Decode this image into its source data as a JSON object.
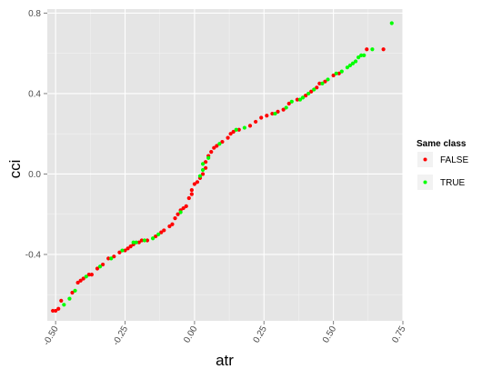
{
  "chart_data": {
    "type": "scatter",
    "title": "",
    "xlabel": "atr",
    "ylabel": "cci",
    "xlim": [
      -0.53,
      0.75
    ],
    "ylim": [
      -0.73,
      0.82
    ],
    "x_ticks": [
      -0.5,
      -0.25,
      0.0,
      0.25,
      0.5,
      0.75
    ],
    "x_tick_labels": [
      "-0.50",
      "-0.25",
      "0.00",
      "0.25",
      "0.50",
      "0.75"
    ],
    "y_ticks": [
      -0.4,
      0.0,
      0.4,
      0.8
    ],
    "y_tick_labels": [
      "-0.4",
      "0.0",
      "0.4",
      "0.8"
    ],
    "grid": true,
    "legend": {
      "title": "Same class",
      "placement": "right",
      "entries": [
        {
          "label": "FALSE",
          "color": "#ff0000"
        },
        {
          "label": "TRUE",
          "color": "#00ff00"
        }
      ]
    },
    "series": [
      {
        "name": "FALSE",
        "color": "#ff0000",
        "points": [
          [
            -0.51,
            -0.68
          ],
          [
            -0.5,
            -0.68
          ],
          [
            -0.49,
            -0.67
          ],
          [
            -0.48,
            -0.63
          ],
          [
            -0.44,
            -0.59
          ],
          [
            -0.42,
            -0.54
          ],
          [
            -0.41,
            -0.53
          ],
          [
            -0.4,
            -0.52
          ],
          [
            -0.38,
            -0.5
          ],
          [
            -0.37,
            -0.5
          ],
          [
            -0.35,
            -0.47
          ],
          [
            -0.33,
            -0.45
          ],
          [
            -0.31,
            -0.42
          ],
          [
            -0.29,
            -0.41
          ],
          [
            -0.27,
            -0.39
          ],
          [
            -0.25,
            -0.38
          ],
          [
            -0.24,
            -0.37
          ],
          [
            -0.23,
            -0.36
          ],
          [
            -0.22,
            -0.35
          ],
          [
            -0.2,
            -0.34
          ],
          [
            -0.19,
            -0.33
          ],
          [
            -0.17,
            -0.33
          ],
          [
            -0.14,
            -0.31
          ],
          [
            -0.12,
            -0.29
          ],
          [
            -0.11,
            -0.28
          ],
          [
            -0.09,
            -0.26
          ],
          [
            -0.08,
            -0.25
          ],
          [
            -0.07,
            -0.22
          ],
          [
            -0.06,
            -0.2
          ],
          [
            -0.05,
            -0.18
          ],
          [
            -0.04,
            -0.17
          ],
          [
            -0.03,
            -0.16
          ],
          [
            -0.02,
            -0.12
          ],
          [
            -0.01,
            -0.1
          ],
          [
            -0.01,
            -0.08
          ],
          [
            0.0,
            -0.05
          ],
          [
            0.01,
            -0.04
          ],
          [
            0.02,
            -0.02
          ],
          [
            0.03,
            0.0
          ],
          [
            0.04,
            0.03
          ],
          [
            0.04,
            0.06
          ],
          [
            0.05,
            0.09
          ],
          [
            0.06,
            0.11
          ],
          [
            0.07,
            0.13
          ],
          [
            0.08,
            0.14
          ],
          [
            0.1,
            0.16
          ],
          [
            0.12,
            0.18
          ],
          [
            0.13,
            0.2
          ],
          [
            0.14,
            0.21
          ],
          [
            0.16,
            0.22
          ],
          [
            0.2,
            0.24
          ],
          [
            0.22,
            0.26
          ],
          [
            0.24,
            0.28
          ],
          [
            0.26,
            0.29
          ],
          [
            0.28,
            0.3
          ],
          [
            0.3,
            0.31
          ],
          [
            0.32,
            0.32
          ],
          [
            0.34,
            0.35
          ],
          [
            0.37,
            0.37
          ],
          [
            0.4,
            0.39
          ],
          [
            0.42,
            0.41
          ],
          [
            0.44,
            0.43
          ],
          [
            0.45,
            0.45
          ],
          [
            0.47,
            0.46
          ],
          [
            0.5,
            0.49
          ],
          [
            0.52,
            0.5
          ],
          [
            0.62,
            0.62
          ],
          [
            0.68,
            0.62
          ]
        ]
      },
      {
        "name": "TRUE",
        "color": "#00ff00",
        "points": [
          [
            -0.47,
            -0.65
          ],
          [
            -0.45,
            -0.62
          ],
          [
            -0.43,
            -0.58
          ],
          [
            -0.39,
            -0.51
          ],
          [
            -0.34,
            -0.46
          ],
          [
            -0.3,
            -0.42
          ],
          [
            -0.26,
            -0.38
          ],
          [
            -0.22,
            -0.34
          ],
          [
            -0.21,
            -0.34
          ],
          [
            -0.18,
            -0.33
          ],
          [
            -0.15,
            -0.32
          ],
          [
            -0.13,
            -0.3
          ],
          [
            -0.05,
            -0.19
          ],
          [
            0.02,
            -0.01
          ],
          [
            0.03,
            0.02
          ],
          [
            0.03,
            0.05
          ],
          [
            0.05,
            0.08
          ],
          [
            0.09,
            0.15
          ],
          [
            0.15,
            0.22
          ],
          [
            0.18,
            0.23
          ],
          [
            0.29,
            0.3
          ],
          [
            0.33,
            0.33
          ],
          [
            0.35,
            0.36
          ],
          [
            0.38,
            0.37
          ],
          [
            0.39,
            0.38
          ],
          [
            0.41,
            0.4
          ],
          [
            0.43,
            0.42
          ],
          [
            0.46,
            0.45
          ],
          [
            0.48,
            0.47
          ],
          [
            0.51,
            0.5
          ],
          [
            0.53,
            0.51
          ],
          [
            0.55,
            0.53
          ],
          [
            0.56,
            0.54
          ],
          [
            0.57,
            0.55
          ],
          [
            0.58,
            0.56
          ],
          [
            0.59,
            0.58
          ],
          [
            0.6,
            0.59
          ],
          [
            0.61,
            0.59
          ],
          [
            0.64,
            0.62
          ],
          [
            0.71,
            0.75
          ]
        ]
      }
    ]
  }
}
